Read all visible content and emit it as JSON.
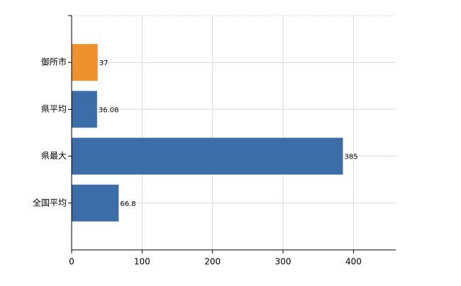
{
  "chart_data": {
    "type": "bar",
    "orientation": "horizontal",
    "categories": [
      "御所市",
      "県平均",
      "県最大",
      "全国平均"
    ],
    "values": [
      37,
      36.08,
      385,
      66.8
    ],
    "colors": [
      "#f0912f",
      "#3b6ea8",
      "#3b6ea8",
      "#3b6ea8"
    ],
    "xlim": [
      0,
      460
    ],
    "xticks": [
      0,
      100,
      200,
      300,
      400
    ],
    "grid": true
  }
}
